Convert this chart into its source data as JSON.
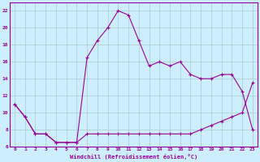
{
  "xlabel": "Windchill (Refroidissement éolien,°C)",
  "bg_color": "#cceeff",
  "line_color": "#990099",
  "grid_color": "#aacccc",
  "xlim": [
    -0.5,
    23.5
  ],
  "ylim": [
    6,
    23
  ],
  "xticks": [
    0,
    1,
    2,
    3,
    4,
    5,
    6,
    7,
    8,
    9,
    10,
    11,
    12,
    13,
    14,
    15,
    16,
    17,
    18,
    19,
    20,
    21,
    22,
    23
  ],
  "yticks": [
    6,
    8,
    10,
    12,
    14,
    16,
    18,
    20,
    22
  ],
  "line1_x": [
    0,
    1,
    2,
    3,
    4,
    5,
    6,
    7,
    8,
    9,
    10,
    11,
    12,
    13,
    14,
    15,
    16,
    17,
    18,
    19,
    20,
    21,
    22,
    23
  ],
  "line1_y": [
    11,
    9.5,
    7.5,
    7.5,
    6.5,
    6.5,
    6.5,
    7.5,
    7.5,
    7.5,
    7.5,
    7.5,
    7.5,
    7.5,
    7.5,
    7.5,
    7.5,
    7.5,
    8,
    8.5,
    9,
    9.5,
    10,
    13.5
  ],
  "line2_x": [
    0,
    1,
    2,
    3,
    4,
    5,
    6,
    7,
    8,
    9,
    10,
    11,
    12,
    13,
    14,
    15,
    16,
    17,
    18,
    19,
    20,
    21,
    22,
    23
  ],
  "line2_y": [
    11,
    9.5,
    7.5,
    7.5,
    6.5,
    6.5,
    6.5,
    16.5,
    18.5,
    20,
    22,
    21.5,
    18.5,
    15.5,
    16,
    15.5,
    16,
    14.5,
    14,
    14,
    14.5,
    14.5,
    12.5,
    8
  ]
}
